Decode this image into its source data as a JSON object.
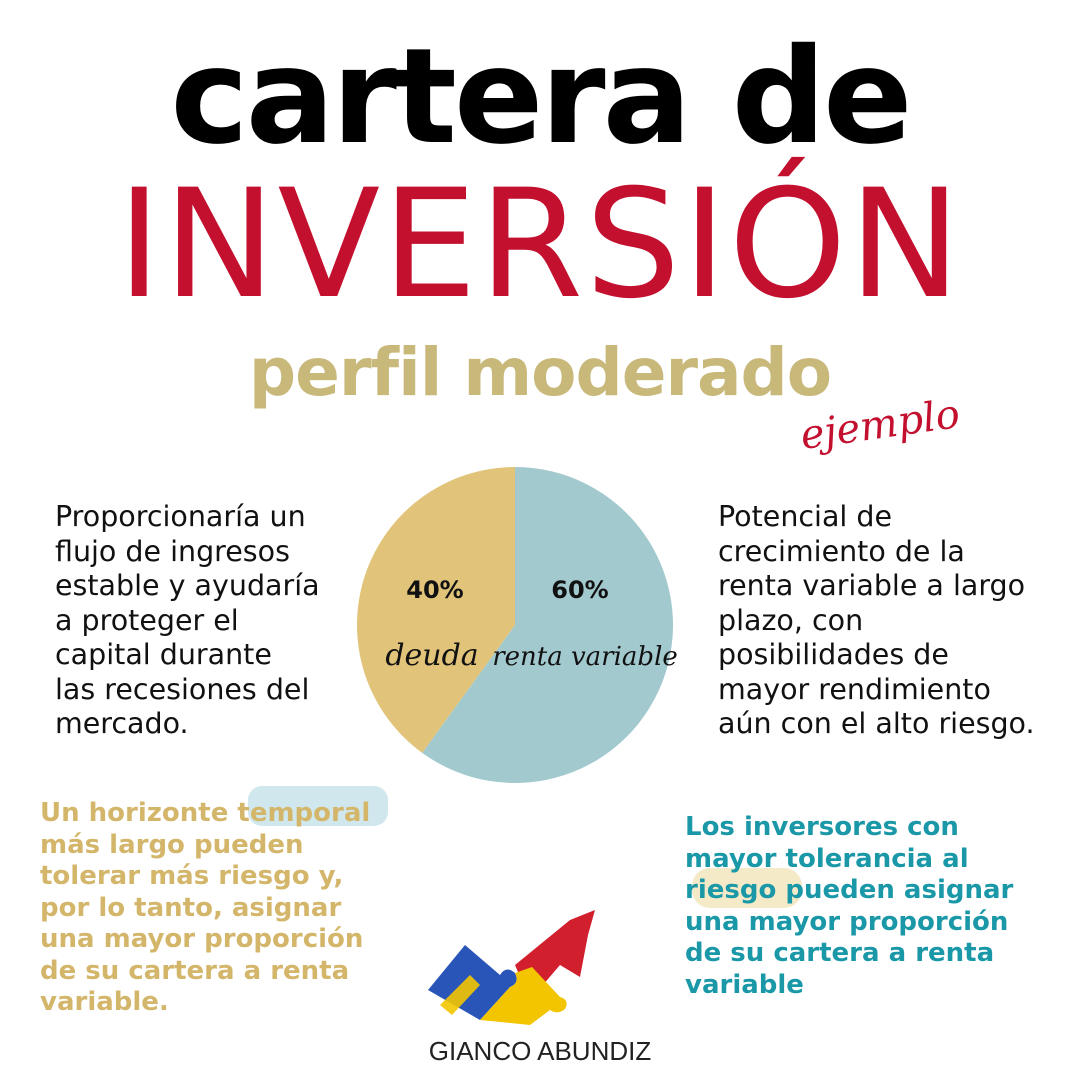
{
  "header": {
    "title_line1": "cartera de",
    "title_line2": "INVERSIÓN",
    "subtitle": "perfil moderado",
    "note": "ejemplo"
  },
  "left_text": "Proporcionaría un\nflujo de ingresos\nestable y ayudaría\na proteger el\ncapital durante\nlas recesiones del\nmercado.",
  "right_text": "Potencial de\ncrecimiento de la\nrenta variable a largo\nplazo, con\nposibilidades de\nmayor rendimiento\naún con el alto riesgo.",
  "bottom_left": "Un horizonte temporal\nmás largo pueden\ntolerar más riesgo y,\npor lo tanto, asignar\nuna mayor proporción\nde su cartera a renta\nvariable.",
  "bottom_right": "Los inversores con\nmayor tolerancia al\nriesgo pueden asignar\nuna mayor proporción\nde su cartera a renta\nvariable",
  "brand": "GIANCO ABUNDIZ",
  "colors": {
    "deuda": "#e1c47a",
    "renta_variable": "#a2c9ce",
    "title_red": "#c3102e",
    "subtitle_gold": "#c8b87a",
    "teal_text": "#1a98a8",
    "gold_text": "#d4b66b"
  },
  "chart_data": {
    "type": "pie",
    "slices": [
      {
        "label": "deuda",
        "value": 40,
        "display": "40%",
        "color": "#e1c47a"
      },
      {
        "label": "renta variable",
        "value": 60,
        "display": "60%",
        "color": "#a2c9ce"
      }
    ],
    "title": "",
    "legend": "none"
  }
}
